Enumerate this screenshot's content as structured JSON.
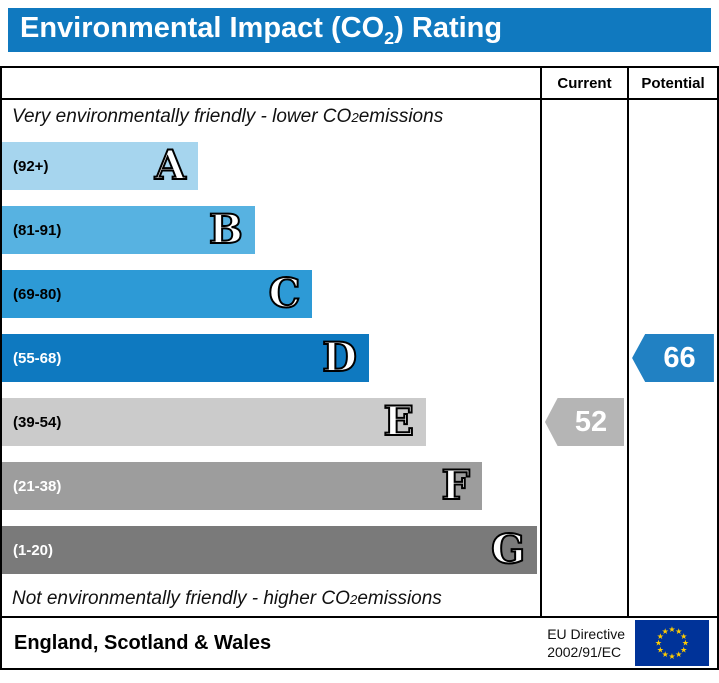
{
  "title": {
    "pre": "Environmental Impact (CO",
    "sub": "2",
    "post": ") Rating"
  },
  "colors": {
    "title_bg": "#1079bf"
  },
  "header": {
    "current": "Current",
    "potential": "Potential"
  },
  "notes": {
    "top": {
      "pre": "Very environmentally friendly - lower CO",
      "sub": "2",
      "post": " emissions"
    },
    "bottom": {
      "pre": "Not environmentally friendly - higher CO",
      "sub": "2",
      "post": " emissions"
    }
  },
  "bands": [
    {
      "letter": "A",
      "range": "(92+)",
      "color": "#a6d5ee",
      "text_color": "#000000",
      "width_pct": 36.4
    },
    {
      "letter": "B",
      "range": "(81-91)",
      "color": "#57b2e1",
      "text_color": "#000000",
      "width_pct": 47.0
    },
    {
      "letter": "C",
      "range": "(69-80)",
      "color": "#2d9ad6",
      "text_color": "#000000",
      "width_pct": 57.7
    },
    {
      "letter": "D",
      "range": "(55-68)",
      "color": "#0e79c0",
      "text_color": "#ffffff",
      "width_pct": 68.2
    },
    {
      "letter": "E",
      "range": "(39-54)",
      "color": "#cbcbcb",
      "text_color": "#000000",
      "width_pct": 78.8
    },
    {
      "letter": "F",
      "range": "(21-38)",
      "color": "#9d9d9d",
      "text_color": "#ffffff",
      "width_pct": 89.2
    },
    {
      "letter": "G",
      "range": "(1-20)",
      "color": "#7a7a7a",
      "text_color": "#ffffff",
      "width_pct": 99.5
    }
  ],
  "pointers": {
    "current": {
      "value": "52",
      "color": "#b5b5b5",
      "band_index": 4
    },
    "potential": {
      "value": "66",
      "color": "#2181c3",
      "band_index": 3
    }
  },
  "footer": {
    "region": "England, Scotland & Wales",
    "directive_line1": "EU Directive",
    "directive_line2": "2002/91/EC"
  },
  "chart_data": {
    "type": "bar",
    "title": "Environmental Impact (CO2) Rating",
    "categories": [
      "A",
      "B",
      "C",
      "D",
      "E",
      "F",
      "G"
    ],
    "band_ranges": [
      "92+",
      "81-91",
      "69-80",
      "55-68",
      "39-54",
      "21-38",
      "1-20"
    ],
    "bar_length_pct": [
      36.4,
      47.0,
      57.7,
      68.2,
      78.8,
      89.2,
      99.5
    ],
    "series": [
      {
        "name": "Current",
        "value": 52,
        "band": "E"
      },
      {
        "name": "Potential",
        "value": 66,
        "band": "D"
      }
    ],
    "annotations": [
      "Very environmentally friendly - lower CO2 emissions",
      "Not environmentally friendly - higher CO2 emissions"
    ],
    "legend_position": "none",
    "grid": false,
    "region_note": "England, Scotland & Wales",
    "directive_note": "EU Directive 2002/91/EC"
  }
}
